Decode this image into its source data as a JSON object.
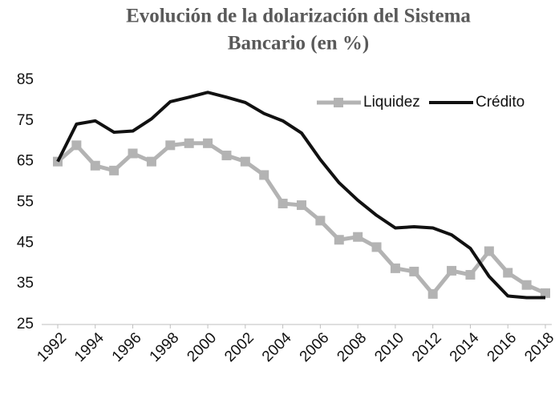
{
  "chart_data": {
    "type": "line",
    "title": [
      "Evolución de la dolarización del Sistema",
      "Bancario (en %)"
    ],
    "x": [
      1992,
      1993,
      1994,
      1995,
      1996,
      1997,
      1998,
      1999,
      2000,
      2001,
      2002,
      2003,
      2004,
      2005,
      2006,
      2007,
      2008,
      2009,
      2010,
      2011,
      2012,
      2013,
      2014,
      2015,
      2016,
      2017,
      2018
    ],
    "series": [
      {
        "name": "Liquidez",
        "color": "#b3b3b3",
        "marker": "square",
        "values": [
          65,
          69,
          64,
          62.8,
          67,
          65,
          69,
          69.5,
          69.5,
          66.5,
          65,
          61.7,
          54.7,
          54.3,
          50.5,
          45.8,
          46.5,
          44,
          38.8,
          38,
          32.5,
          38.2,
          37.2,
          43,
          37.7,
          34.7,
          32.7
        ]
      },
      {
        "name": "Crédito",
        "color": "#111111",
        "values": [
          65,
          74.2,
          75,
          72.2,
          72.5,
          75.5,
          79.7,
          80.8,
          82,
          80.8,
          79.5,
          76.8,
          75,
          72,
          65.5,
          59.8,
          55.5,
          51.8,
          48.7,
          49,
          48.7,
          47,
          43.7,
          36.8,
          32,
          31.6,
          31.6
        ]
      }
    ],
    "xlim": [
      1992,
      2018
    ],
    "xticks": [
      1992,
      1994,
      1996,
      1998,
      2000,
      2002,
      2004,
      2006,
      2008,
      2010,
      2012,
      2014,
      2016,
      2018
    ],
    "ylim": [
      25,
      85
    ],
    "yticks": [
      25,
      35,
      45,
      55,
      65,
      75,
      85
    ],
    "grid": false,
    "legend": "top-right"
  }
}
